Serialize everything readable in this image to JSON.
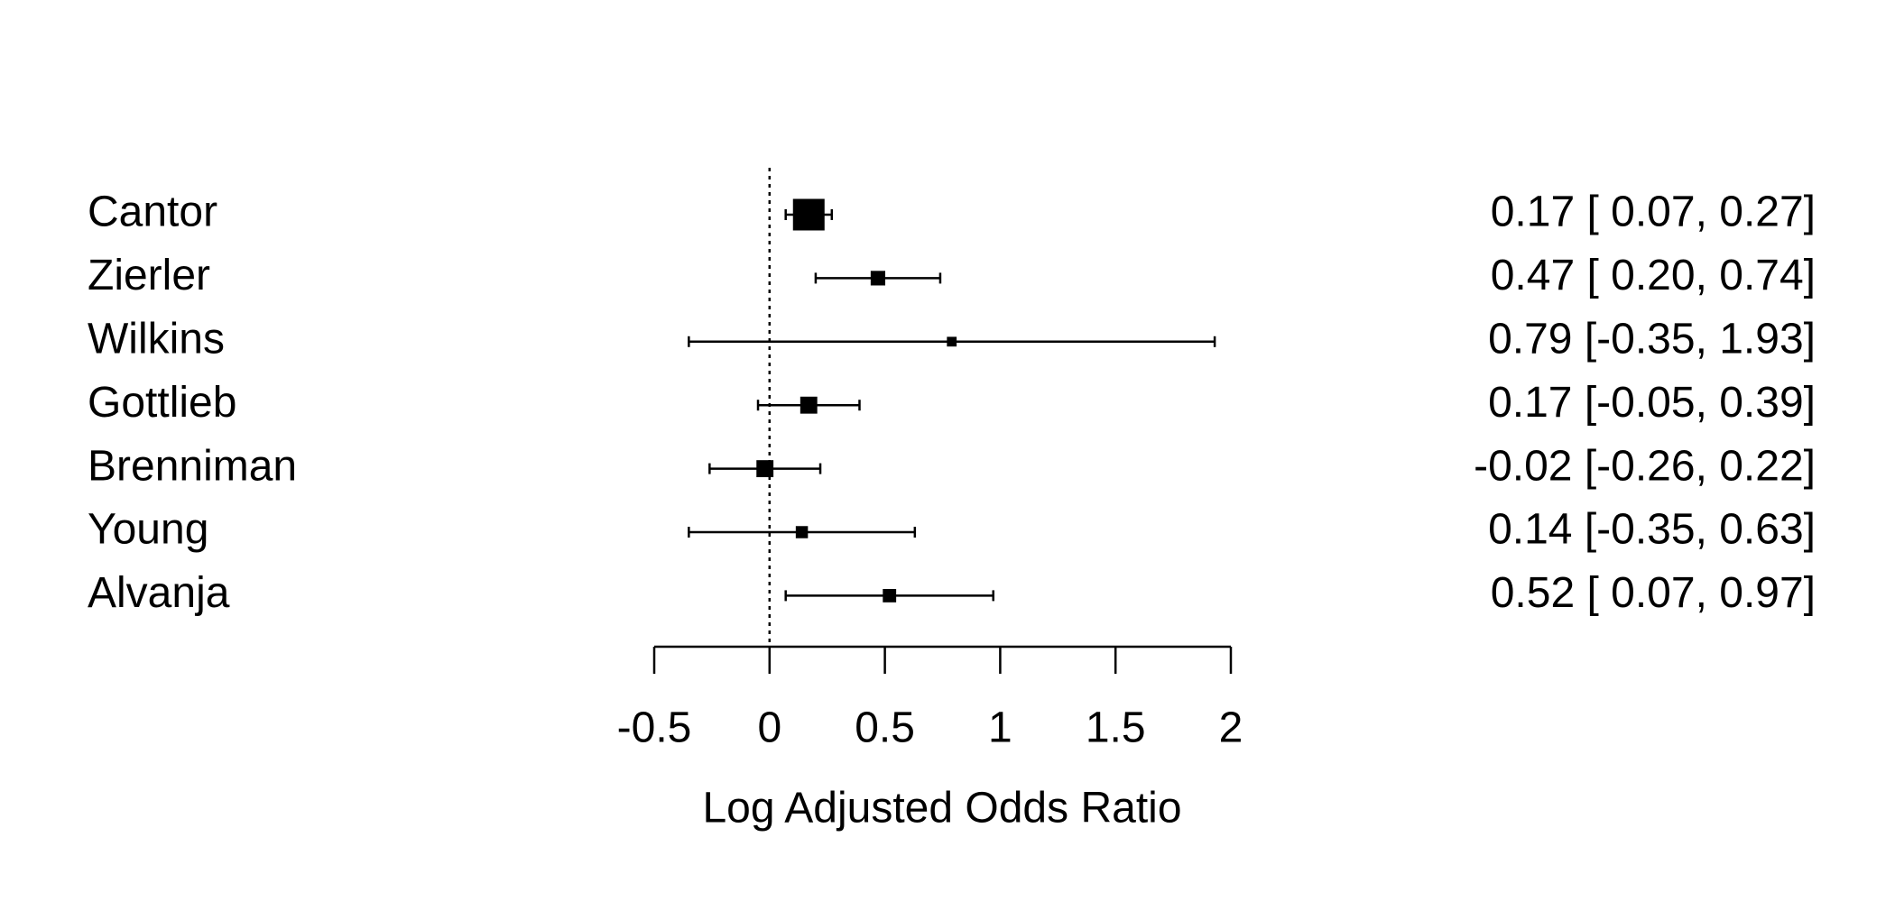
{
  "chart_data": {
    "type": "forest",
    "categories": [
      "Cantor",
      "Zierler",
      "Wilkins",
      "Gottlieb",
      "Brenniman",
      "Young",
      "Alvanja"
    ],
    "values": [
      0.17,
      0.47,
      0.79,
      0.17,
      -0.02,
      0.14,
      0.52
    ],
    "lower": [
      0.07,
      0.2,
      -0.35,
      -0.05,
      -0.26,
      -0.35,
      0.07
    ],
    "upper": [
      0.27,
      0.74,
      1.93,
      0.39,
      0.22,
      0.63,
      0.97
    ],
    "weights": [
      26,
      12,
      8,
      14,
      14,
      10,
      11
    ],
    "value_labels": [
      "0.17 [ 0.07, 0.27]",
      "0.47 [ 0.20, 0.74]",
      "0.79 [-0.35, 1.93]",
      "0.17 [-0.05, 0.39]",
      "-0.02 [-0.26, 0.22]",
      "0.14 [-0.35, 0.63]",
      "0.52 [ 0.07, 0.97]"
    ],
    "xlabel": "Log Adjusted Odds Ratio",
    "xlim": [
      -0.5,
      2
    ],
    "xticks": [
      -0.5,
      0,
      0.5,
      1,
      1.5,
      2
    ],
    "refline": 0,
    "color": "#000000"
  }
}
